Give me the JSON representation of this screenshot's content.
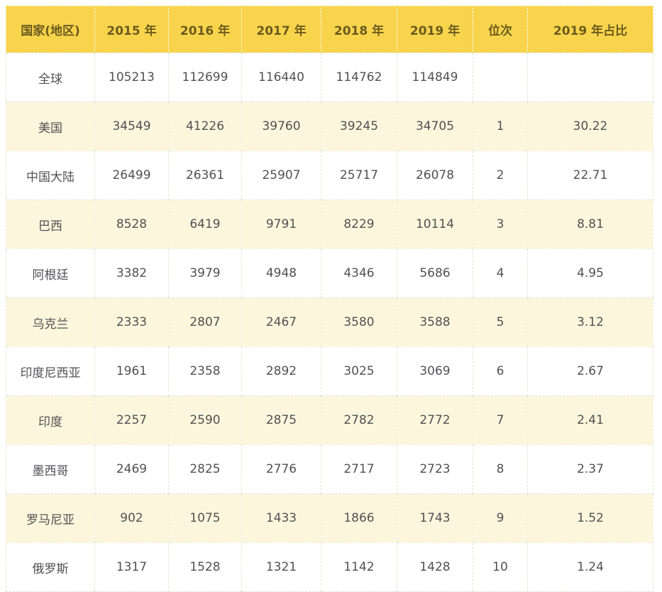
{
  "chart_data": {
    "type": "table",
    "title": "",
    "columns": [
      "国家(地区)",
      "2015 年",
      "2016 年",
      "2017 年",
      "2018 年",
      "2019 年",
      "位次",
      "2019 年占比"
    ],
    "column_keys": [
      "country",
      "y2015",
      "y2016",
      "y2017",
      "y2018",
      "y2019",
      "rank",
      "share2019"
    ],
    "rows": [
      [
        "全球",
        "105213",
        "112699",
        "116440",
        "114762",
        "114849",
        "",
        ""
      ],
      [
        "美国",
        "34549",
        "41226",
        "39760",
        "39245",
        "34705",
        "1",
        "30.22"
      ],
      [
        "中国大陆",
        "26499",
        "26361",
        "25907",
        "25717",
        "26078",
        "2",
        "22.71"
      ],
      [
        "巴西",
        "8528",
        "6419",
        "9791",
        "8229",
        "10114",
        "3",
        "8.81"
      ],
      [
        "阿根廷",
        "3382",
        "3979",
        "4948",
        "4346",
        "5686",
        "4",
        "4.95"
      ],
      [
        "乌克兰",
        "2333",
        "2807",
        "2467",
        "3580",
        "3588",
        "5",
        "3.12"
      ],
      [
        "印度尼西亚",
        "1961",
        "2358",
        "2892",
        "3025",
        "3069",
        "6",
        "2.67"
      ],
      [
        "印度",
        "2257",
        "2590",
        "2875",
        "2782",
        "2772",
        "7",
        "2.41"
      ],
      [
        "墨西哥",
        "2469",
        "2825",
        "2776",
        "2717",
        "2723",
        "8",
        "2.37"
      ],
      [
        "罗马尼亚",
        "902",
        "1075",
        "1433",
        "1866",
        "1743",
        "9",
        "1.52"
      ],
      [
        "俄罗斯",
        "1317",
        "1528",
        "1321",
        "1142",
        "1428",
        "10",
        "1.24"
      ]
    ]
  },
  "colors": {
    "header_bg": "#F8D44C",
    "header_text": "#6B5B1E",
    "row_alt_bg": "#FCF6DC",
    "row_bg": "#FFFFFF",
    "body_text": "#515155",
    "border_body": "#E4E1D4",
    "border_header": "#F6DF7C"
  }
}
